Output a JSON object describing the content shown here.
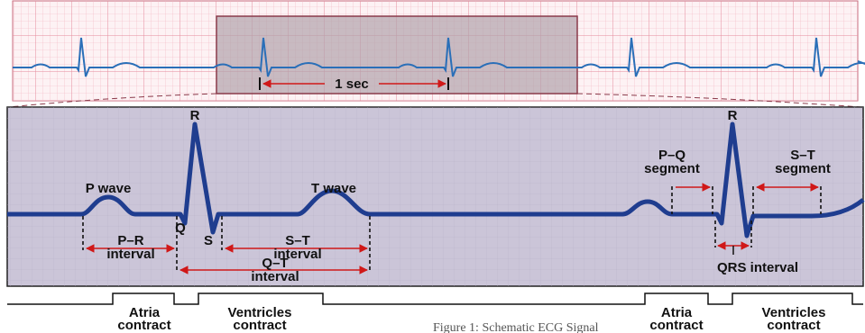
{
  "top_strip": {
    "scale_label": "1 sec"
  },
  "waves": {
    "r_peak_1": "R",
    "r_peak_2": "R",
    "p_wave": "P wave",
    "t_wave": "T wave",
    "q": "Q",
    "s": "S"
  },
  "intervals": {
    "pr": [
      "P–R",
      "interval"
    ],
    "st": [
      "S–T",
      "interval"
    ],
    "qt": [
      "Q–T",
      "interval"
    ],
    "qrs": "QRS interval"
  },
  "segments": {
    "pq": [
      "P–Q",
      "segment"
    ],
    "st": [
      "S–T",
      "segment"
    ]
  },
  "phases": [
    {
      "label": [
        "Atria",
        "contract"
      ]
    },
    {
      "label": [
        "Ventricles",
        "contract"
      ]
    },
    {
      "label": [
        "Atria",
        "contract"
      ]
    },
    {
      "label": [
        "Ventricles",
        "contract"
      ]
    }
  ],
  "caption": "Figure 1: Schematic ECG Signal"
}
